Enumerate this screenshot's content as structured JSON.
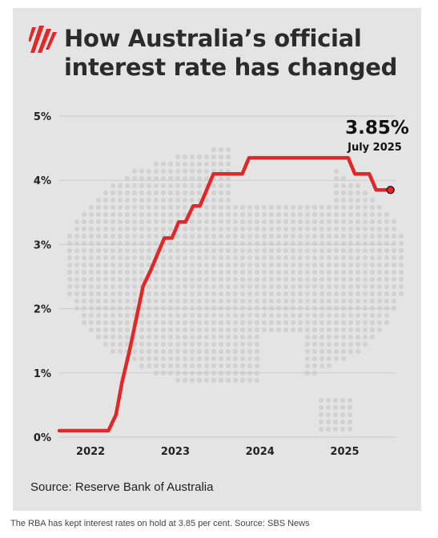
{
  "title": "How Australia’s official interest rate has changed",
  "source": "Source: Reserve Bank of Australia",
  "caption": "The RBA has kept interest rates on hold at 3.85 per cent. Source: SBS News",
  "logo_icon": "sbs-logo-icon",
  "colors": {
    "line": "#e32626",
    "background": "#e4e4e4",
    "grid": "#c9c9c9",
    "dot": "#d2d2d2"
  },
  "chart_data": {
    "type": "line",
    "title": "How Australia’s official interest rate has changed",
    "xlabel": "",
    "ylabel": "",
    "ylim": [
      0,
      5
    ],
    "xlim": [
      2021.63,
      2025.6
    ],
    "y_ticks": [
      "0%",
      "1%",
      "2%",
      "3%",
      "4%",
      "5%"
    ],
    "y_tick_values": [
      0,
      1,
      2,
      3,
      4,
      5
    ],
    "x_ticks": [
      "2022",
      "2023",
      "2024",
      "2025"
    ],
    "x_tick_values": [
      2022,
      2023,
      2024,
      2025
    ],
    "grid": true,
    "series": [
      {
        "x": [
          2021.63,
          2022.21,
          2022.3,
          2022.37,
          2022.46,
          2022.54,
          2022.62,
          2022.71,
          2022.79,
          2022.87,
          2022.96,
          2023.04,
          2023.12,
          2023.21,
          2023.29,
          2023.37,
          2023.45,
          2023.54,
          2023.62,
          2023.71,
          2023.79,
          2023.87,
          2023.96,
          2024.04,
          2024.12,
          2024.21,
          2024.29,
          2024.37,
          2024.45,
          2024.54,
          2024.62,
          2024.71,
          2024.79,
          2024.87,
          2024.96,
          2025.04,
          2025.12,
          2025.21,
          2025.29,
          2025.37,
          2025.45,
          2025.54
        ],
        "values": [
          0.1,
          0.1,
          0.35,
          0.85,
          1.35,
          1.85,
          2.35,
          2.6,
          2.85,
          3.1,
          3.1,
          3.35,
          3.35,
          3.6,
          3.6,
          3.85,
          4.1,
          4.1,
          4.1,
          4.1,
          4.1,
          4.35,
          4.35,
          4.35,
          4.35,
          4.35,
          4.35,
          4.35,
          4.35,
          4.35,
          4.35,
          4.35,
          4.35,
          4.35,
          4.35,
          4.35,
          4.1,
          4.1,
          4.1,
          3.85,
          3.85,
          3.85
        ]
      }
    ],
    "annotations": [
      {
        "text": "3.85%",
        "subtext": "July 2025",
        "x": 2025.54,
        "y": 3.85
      }
    ]
  }
}
